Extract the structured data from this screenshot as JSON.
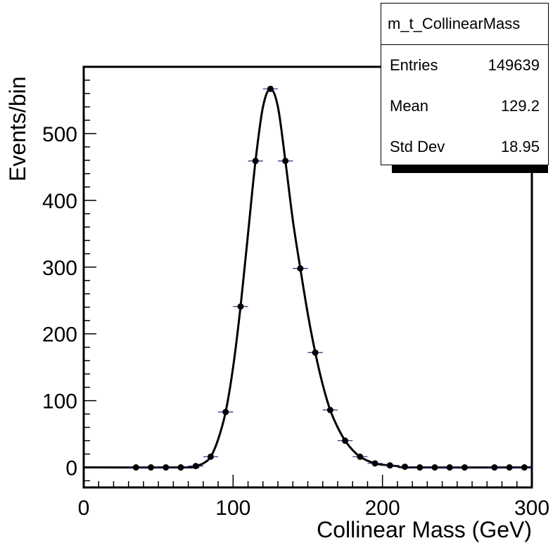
{
  "chart_data": {
    "type": "scatter",
    "xlabel": "Collinear Mass (GeV)",
    "ylabel": "Events/bin",
    "xlim": [
      0,
      300
    ],
    "ylim": [
      -30,
      600
    ],
    "x_ticks": [
      "0",
      "100",
      "200",
      "300"
    ],
    "y_ticks": [
      "0",
      "100",
      "200",
      "300",
      "400",
      "500"
    ],
    "x_tick_values": [
      0,
      100,
      200,
      300
    ],
    "y_tick_values": [
      0,
      100,
      200,
      300,
      400,
      500
    ],
    "bin_width": 10,
    "points": {
      "x": [
        35,
        45,
        55,
        65,
        75,
        85,
        95,
        105,
        115,
        125,
        135,
        145,
        155,
        165,
        175,
        185,
        195,
        205,
        215,
        225,
        235,
        245,
        255,
        275,
        285,
        295
      ],
      "y": [
        0,
        0,
        0,
        0,
        2,
        16,
        83,
        241,
        459,
        567,
        459,
        298,
        172,
        86,
        40,
        16,
        6,
        3,
        1,
        0,
        0,
        0,
        0,
        0,
        0,
        0
      ]
    },
    "curve": {
      "x": [
        0,
        70,
        75,
        80,
        85,
        90,
        95,
        100,
        105,
        110,
        115,
        120,
        125,
        130,
        135,
        140,
        145,
        150,
        155,
        160,
        165,
        170,
        175,
        180,
        185,
        190,
        195,
        200,
        210,
        220,
        300
      ],
      "y": [
        0,
        0,
        2,
        6,
        16,
        42,
        83,
        150,
        241,
        350,
        459,
        540,
        567,
        540,
        459,
        370,
        298,
        230,
        172,
        124,
        86,
        60,
        40,
        26,
        16,
        10,
        6,
        4,
        2,
        0,
        0
      ]
    },
    "stats_box": {
      "title": "m_t_CollinearMass",
      "rows": [
        {
          "label": "Entries",
          "value": "149639"
        },
        {
          "label": "Mean",
          "value": "129.2"
        },
        {
          "label": "Std Dev",
          "value": "18.95"
        }
      ]
    },
    "grid": false,
    "legend": "top-right"
  }
}
